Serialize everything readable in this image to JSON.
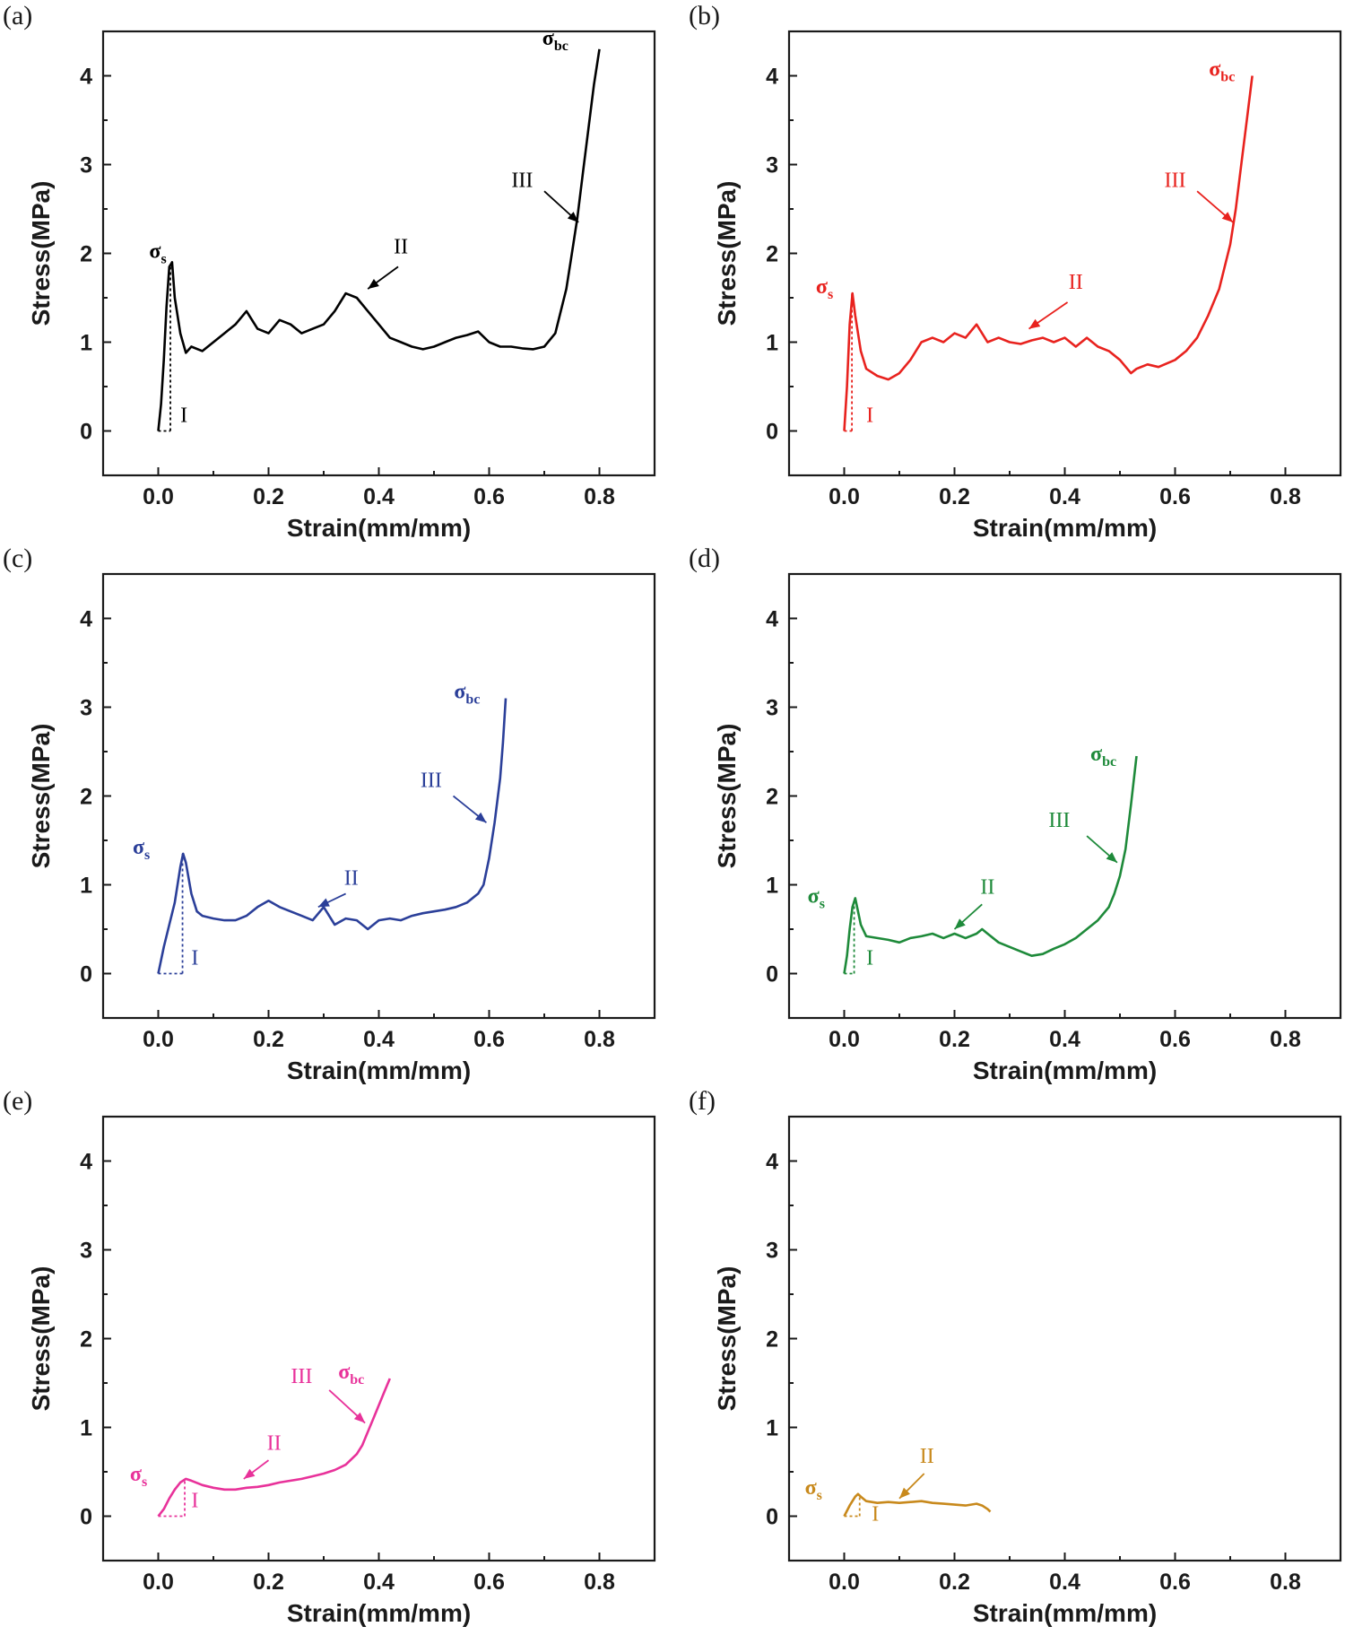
{
  "figure": {
    "panel_order": [
      "a",
      "b",
      "c",
      "d",
      "e",
      "f"
    ]
  },
  "chart_data": [
    {
      "type": "line",
      "panel": "(a)",
      "color": "#000000",
      "xlabel": "Strain(mm/mm)",
      "ylabel": "Stress(MPa)",
      "xlim": [
        -0.1,
        0.9
      ],
      "ylim": [
        -0.5,
        4.5
      ],
      "xticks": [
        "0.0",
        "0.2",
        "0.4",
        "0.6",
        "0.8"
      ],
      "yticks": [
        "0",
        "1",
        "2",
        "3",
        "4"
      ],
      "x": [
        0.0,
        0.005,
        0.01,
        0.015,
        0.02,
        0.025,
        0.03,
        0.04,
        0.05,
        0.06,
        0.08,
        0.1,
        0.12,
        0.14,
        0.16,
        0.18,
        0.2,
        0.22,
        0.24,
        0.26,
        0.28,
        0.3,
        0.32,
        0.34,
        0.36,
        0.38,
        0.4,
        0.42,
        0.44,
        0.46,
        0.48,
        0.5,
        0.52,
        0.54,
        0.56,
        0.58,
        0.6,
        0.62,
        0.64,
        0.66,
        0.68,
        0.7,
        0.72,
        0.74,
        0.75,
        0.76,
        0.77,
        0.78,
        0.79,
        0.8
      ],
      "y": [
        0.0,
        0.3,
        0.8,
        1.4,
        1.85,
        1.9,
        1.5,
        1.1,
        0.88,
        0.95,
        0.9,
        1.0,
        1.1,
        1.2,
        1.35,
        1.15,
        1.1,
        1.25,
        1.2,
        1.1,
        1.15,
        1.2,
        1.35,
        1.55,
        1.5,
        1.35,
        1.2,
        1.05,
        1.0,
        0.95,
        0.92,
        0.95,
        1.0,
        1.05,
        1.08,
        1.12,
        1.0,
        0.95,
        0.95,
        0.93,
        0.92,
        0.95,
        1.1,
        1.6,
        2.0,
        2.4,
        2.9,
        3.4,
        3.9,
        4.3
      ],
      "phase_line": {
        "x": 0.022,
        "y": 1.85
      },
      "annotations": {
        "sigma_s": "σ",
        "sigma_s_sub": "s",
        "sigma_bc": "σ",
        "sigma_bc_sub": "bc",
        "stage1": "I",
        "stage2": "II",
        "stage3": "III"
      }
    },
    {
      "type": "line",
      "panel": "(b)",
      "color": "#e8221e",
      "xlabel": "Strain(mm/mm)",
      "ylabel": "Stress(MPa)",
      "xlim": [
        -0.1,
        0.9
      ],
      "ylim": [
        -0.5,
        4.5
      ],
      "xticks": [
        "0.0",
        "0.2",
        "0.4",
        "0.6",
        "0.8"
      ],
      "yticks": [
        "0",
        "1",
        "2",
        "3",
        "4"
      ],
      "x": [
        0.0,
        0.005,
        0.01,
        0.015,
        0.02,
        0.03,
        0.04,
        0.06,
        0.08,
        0.1,
        0.12,
        0.14,
        0.16,
        0.18,
        0.2,
        0.22,
        0.24,
        0.26,
        0.28,
        0.3,
        0.32,
        0.34,
        0.36,
        0.38,
        0.4,
        0.42,
        0.44,
        0.46,
        0.48,
        0.5,
        0.52,
        0.53,
        0.55,
        0.57,
        0.6,
        0.62,
        0.64,
        0.66,
        0.68,
        0.7,
        0.71,
        0.72,
        0.73,
        0.74
      ],
      "y": [
        0.0,
        0.5,
        1.2,
        1.55,
        1.3,
        0.9,
        0.7,
        0.62,
        0.58,
        0.65,
        0.8,
        1.0,
        1.05,
        1.0,
        1.1,
        1.05,
        1.2,
        1.0,
        1.05,
        1.0,
        0.98,
        1.02,
        1.05,
        1.0,
        1.05,
        0.95,
        1.05,
        0.95,
        0.9,
        0.8,
        0.65,
        0.7,
        0.75,
        0.72,
        0.8,
        0.9,
        1.05,
        1.3,
        1.6,
        2.1,
        2.5,
        3.0,
        3.5,
        4.0
      ],
      "phase_line": {
        "x": 0.014,
        "y": 1.55
      },
      "annotations": {
        "sigma_s": "σ",
        "sigma_s_sub": "s",
        "sigma_bc": "σ",
        "sigma_bc_sub": "bc",
        "stage1": "I",
        "stage2": "II",
        "stage3": "III"
      }
    },
    {
      "type": "line",
      "panel": "(c)",
      "color": "#2b3f99",
      "xlabel": "Strain(mm/mm)",
      "ylabel": "Stress(MPa)",
      "xlim": [
        -0.1,
        0.9
      ],
      "ylim": [
        -0.5,
        4.5
      ],
      "xticks": [
        "0.0",
        "0.2",
        "0.4",
        "0.6",
        "0.8"
      ],
      "yticks": [
        "0",
        "1",
        "2",
        "3",
        "4"
      ],
      "x": [
        0.0,
        0.01,
        0.02,
        0.03,
        0.04,
        0.045,
        0.05,
        0.06,
        0.07,
        0.08,
        0.1,
        0.12,
        0.14,
        0.16,
        0.18,
        0.2,
        0.22,
        0.24,
        0.26,
        0.28,
        0.3,
        0.32,
        0.34,
        0.36,
        0.38,
        0.4,
        0.42,
        0.44,
        0.46,
        0.48,
        0.5,
        0.52,
        0.54,
        0.56,
        0.58,
        0.59,
        0.6,
        0.61,
        0.62,
        0.625,
        0.63
      ],
      "y": [
        0.0,
        0.3,
        0.55,
        0.8,
        1.2,
        1.35,
        1.25,
        0.9,
        0.7,
        0.65,
        0.62,
        0.6,
        0.6,
        0.65,
        0.75,
        0.82,
        0.75,
        0.7,
        0.65,
        0.6,
        0.75,
        0.55,
        0.62,
        0.6,
        0.5,
        0.6,
        0.62,
        0.6,
        0.65,
        0.68,
        0.7,
        0.72,
        0.75,
        0.8,
        0.9,
        1.0,
        1.3,
        1.7,
        2.2,
        2.6,
        3.1
      ],
      "phase_line": {
        "x": 0.044,
        "y": 1.35
      },
      "annotations": {
        "sigma_s": "σ",
        "sigma_s_sub": "s",
        "sigma_bc": "σ",
        "sigma_bc_sub": "bc",
        "stage1": "I",
        "stage2": "II",
        "stage3": "III"
      }
    },
    {
      "type": "line",
      "panel": "(d)",
      "color": "#1e8a3a",
      "xlabel": "Strain(mm/mm)",
      "ylabel": "Stress(MPa)",
      "xlim": [
        -0.1,
        0.9
      ],
      "ylim": [
        -0.5,
        4.5
      ],
      "xticks": [
        "0.0",
        "0.2",
        "0.4",
        "0.6",
        "0.8"
      ],
      "yticks": [
        "0",
        "1",
        "2",
        "3",
        "4"
      ],
      "x": [
        0.0,
        0.005,
        0.01,
        0.015,
        0.02,
        0.025,
        0.03,
        0.04,
        0.06,
        0.08,
        0.1,
        0.12,
        0.14,
        0.16,
        0.18,
        0.2,
        0.22,
        0.24,
        0.25,
        0.26,
        0.28,
        0.3,
        0.32,
        0.34,
        0.36,
        0.38,
        0.4,
        0.42,
        0.44,
        0.46,
        0.48,
        0.49,
        0.5,
        0.51,
        0.52,
        0.53
      ],
      "y": [
        0.0,
        0.2,
        0.5,
        0.75,
        0.85,
        0.7,
        0.55,
        0.42,
        0.4,
        0.38,
        0.35,
        0.4,
        0.42,
        0.45,
        0.4,
        0.45,
        0.4,
        0.45,
        0.5,
        0.45,
        0.35,
        0.3,
        0.25,
        0.2,
        0.22,
        0.28,
        0.33,
        0.4,
        0.5,
        0.6,
        0.75,
        0.9,
        1.1,
        1.4,
        1.9,
        2.45
      ],
      "phase_line": {
        "x": 0.018,
        "y": 0.82
      },
      "annotations": {
        "sigma_s": "σ",
        "sigma_s_sub": "s",
        "sigma_bc": "σ",
        "sigma_bc_sub": "bc",
        "stage1": "I",
        "stage2": "II",
        "stage3": "III"
      }
    },
    {
      "type": "line",
      "panel": "(e)",
      "color": "#e8329a",
      "xlabel": "Strain(mm/mm)",
      "ylabel": "Stress(MPa)",
      "xlim": [
        -0.1,
        0.9
      ],
      "ylim": [
        -0.5,
        4.5
      ],
      "xticks": [
        "0.0",
        "0.2",
        "0.4",
        "0.6",
        "0.8"
      ],
      "yticks": [
        "0",
        "1",
        "2",
        "3",
        "4"
      ],
      "x": [
        0.0,
        0.01,
        0.02,
        0.03,
        0.04,
        0.05,
        0.06,
        0.08,
        0.1,
        0.12,
        0.14,
        0.16,
        0.18,
        0.2,
        0.22,
        0.24,
        0.26,
        0.28,
        0.3,
        0.32,
        0.34,
        0.36,
        0.37,
        0.38,
        0.39,
        0.4,
        0.41,
        0.42
      ],
      "y": [
        0.0,
        0.08,
        0.2,
        0.3,
        0.38,
        0.42,
        0.4,
        0.35,
        0.32,
        0.3,
        0.3,
        0.32,
        0.33,
        0.35,
        0.38,
        0.4,
        0.42,
        0.45,
        0.48,
        0.52,
        0.58,
        0.7,
        0.8,
        0.95,
        1.1,
        1.25,
        1.4,
        1.55
      ],
      "phase_line": {
        "x": 0.048,
        "y": 0.42
      },
      "annotations": {
        "sigma_s": "σ",
        "sigma_s_sub": "s",
        "sigma_bc": "σ",
        "sigma_bc_sub": "bc",
        "stage1": "I",
        "stage2": "II",
        "stage3": "III"
      }
    },
    {
      "type": "line",
      "panel": "(f)",
      "color": "#c8891c",
      "xlabel": "Strain(mm/mm)",
      "ylabel": "Stress(MPa)",
      "xlim": [
        -0.1,
        0.9
      ],
      "ylim": [
        -0.5,
        4.5
      ],
      "xticks": [
        "0.0",
        "0.2",
        "0.4",
        "0.6",
        "0.8"
      ],
      "yticks": [
        "0",
        "1",
        "2",
        "3",
        "4"
      ],
      "x": [
        0.0,
        0.01,
        0.02,
        0.025,
        0.03,
        0.04,
        0.06,
        0.08,
        0.1,
        0.12,
        0.14,
        0.16,
        0.18,
        0.2,
        0.22,
        0.24,
        0.25,
        0.26,
        0.265
      ],
      "y": [
        0.0,
        0.12,
        0.22,
        0.25,
        0.22,
        0.17,
        0.15,
        0.16,
        0.15,
        0.16,
        0.17,
        0.15,
        0.14,
        0.13,
        0.12,
        0.14,
        0.12,
        0.08,
        0.05
      ],
      "phase_line": {
        "x": 0.028,
        "y": 0.24
      },
      "annotations": {
        "sigma_s": "σ",
        "sigma_s_sub": "s",
        "stage1": "I",
        "stage2": "II"
      }
    }
  ]
}
